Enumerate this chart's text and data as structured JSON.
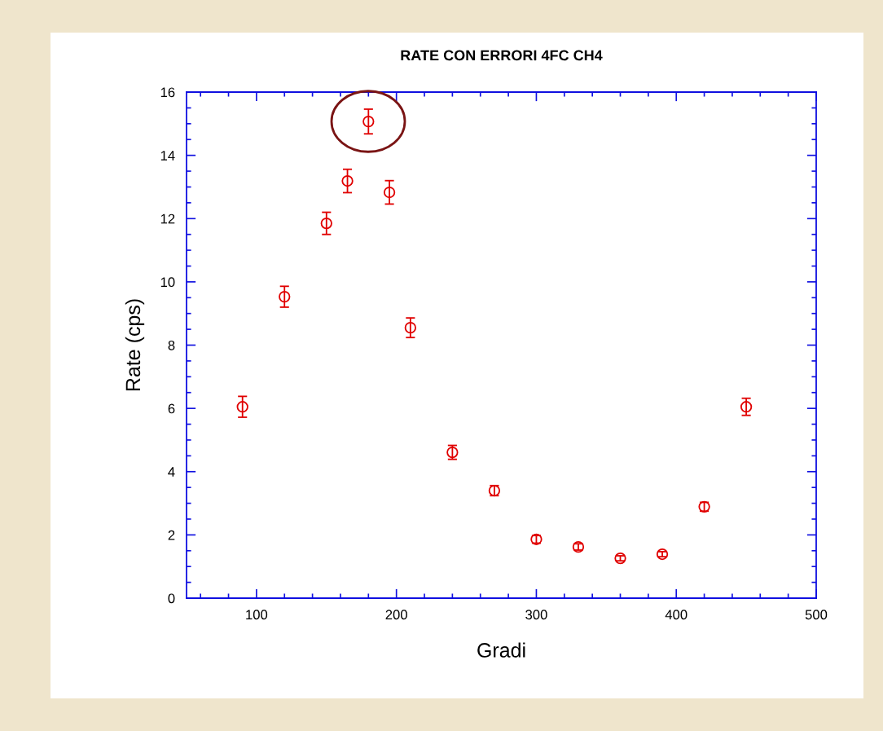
{
  "chart_data": {
    "type": "scatter",
    "title": "RATE CON ERRORI 4FC CH4",
    "xlabel": "Gradi",
    "ylabel": "Rate (cps)",
    "x": [
      90,
      120,
      150,
      165,
      180,
      195,
      210,
      240,
      270,
      300,
      330,
      360,
      390,
      420,
      450
    ],
    "series": [
      {
        "color": "#e00000",
        "values": [
          6.05,
          9.53,
          11.85,
          13.19,
          15.07,
          12.83,
          8.55,
          4.61,
          3.4,
          1.86,
          1.62,
          1.26,
          1.39,
          2.89,
          6.05
        ],
        "errors": [
          0.33,
          0.33,
          0.35,
          0.37,
          0.39,
          0.37,
          0.31,
          0.22,
          0.16,
          0.12,
          0.1,
          0.08,
          0.08,
          0.14,
          0.27
        ]
      }
    ],
    "marker": "circle",
    "grid": false,
    "legend": false,
    "xlim": [
      50,
      500
    ],
    "xticks": [
      {
        "value": 60,
        "label": null
      },
      {
        "value": 80,
        "label": null
      },
      100,
      {
        "value": 120,
        "label": null
      },
      {
        "value": 140,
        "label": null
      },
      {
        "value": 160,
        "label": null
      },
      {
        "value": 180,
        "label": null
      },
      200,
      {
        "value": 220,
        "label": null
      },
      {
        "value": 240,
        "label": null
      },
      {
        "value": 260,
        "label": null
      },
      {
        "value": 280,
        "label": null
      },
      300,
      {
        "value": 320,
        "label": null
      },
      {
        "value": 340,
        "label": null
      },
      {
        "value": 360,
        "label": null
      },
      {
        "value": 380,
        "label": null
      },
      400,
      {
        "value": 420,
        "label": null
      },
      {
        "value": 440,
        "label": null
      },
      {
        "value": 460,
        "label": null
      },
      {
        "value": 480,
        "label": null
      },
      500
    ],
    "ylim": [
      0,
      16
    ],
    "yticks": [
      0,
      {
        "value": 0.5,
        "label": null
      },
      {
        "value": 1,
        "label": null
      },
      {
        "value": 1.5,
        "label": null
      },
      2,
      {
        "value": 2.5,
        "label": null
      },
      {
        "value": 3,
        "label": null
      },
      {
        "value": 3.5,
        "label": null
      },
      4,
      {
        "value": 4.5,
        "label": null
      },
      {
        "value": 5,
        "label": null
      },
      {
        "value": 5.5,
        "label": null
      },
      6,
      {
        "value": 6.5,
        "label": null
      },
      {
        "value": 7,
        "label": null
      },
      {
        "value": 7.5,
        "label": null
      },
      8,
      {
        "value": 8.5,
        "label": null
      },
      {
        "value": 9,
        "label": null
      },
      {
        "value": 9.5,
        "label": null
      },
      10,
      {
        "value": 10.5,
        "label": null
      },
      {
        "value": 11,
        "label": null
      },
      {
        "value": 11.5,
        "label": null
      },
      12,
      {
        "value": 12.5,
        "label": null
      },
      {
        "value": 13,
        "label": null
      },
      {
        "value": 13.5,
        "label": null
      },
      14,
      {
        "value": 14.5,
        "label": null
      },
      {
        "value": 15,
        "label": null
      },
      {
        "value": 15.5,
        "label": null
      },
      16
    ]
  }
}
